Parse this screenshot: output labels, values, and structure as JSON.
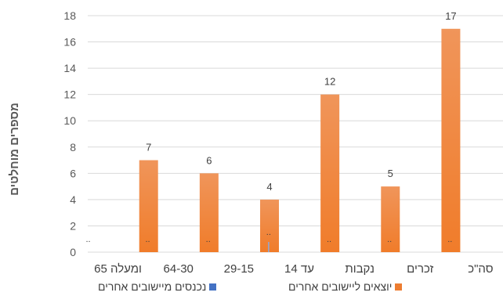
{
  "chart_data": {
    "type": "bar",
    "ylabel": "מספרים מוחלטים",
    "ylim": [
      0,
      18
    ],
    "yticks": [
      "0",
      "2",
      "4",
      "6",
      "8",
      "10",
      "12",
      "14",
      "16",
      "18"
    ],
    "categories": [
      "סה\"כ",
      "זכרים",
      "נקבות",
      "עד 14",
      "29-15",
      "64-30",
      "65 ומעלה"
    ],
    "series": [
      {
        "name": "יוצאים ליישובים אחרים",
        "color": "#ED7D31",
        "values": [
          17,
          5,
          12,
          4,
          6,
          7,
          null
        ],
        "labels": [
          "17",
          "5",
          "12",
          "4",
          "6",
          "7",
          ".."
        ]
      },
      {
        "name": "נכנסים מיישובים אחרים",
        "color": "#4472C4",
        "values": [
          null,
          null,
          null,
          null,
          null,
          null,
          null
        ],
        "labels": [
          "..",
          "..",
          "..",
          "..",
          "..",
          "..",
          ".."
        ]
      }
    ],
    "grid": true,
    "legend": "bottom"
  }
}
